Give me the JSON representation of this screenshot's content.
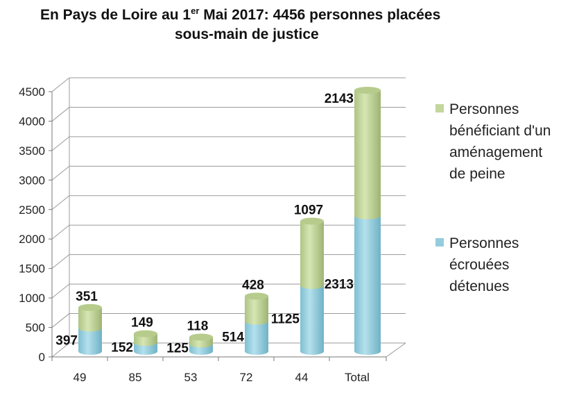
{
  "chart_data": {
    "type": "bar",
    "stacked": true,
    "style": "3d-cylinder",
    "title_part1": "En Pays de Loire au 1",
    "title_sup": "er",
    "title_part2": " Mai 2017: 4456 personnes placées",
    "title_line2": "sous-main de justice",
    "categories": [
      "49",
      "85",
      "53",
      "72",
      "44",
      "Total"
    ],
    "series": [
      {
        "name": "Personnes écrouées détenues",
        "name_lines": [
          "Personnes",
          "écrouées",
          "détenues"
        ],
        "color": "#93cddd",
        "values": [
          397,
          152,
          125,
          514,
          1125,
          2313
        ]
      },
      {
        "name": "Personnes bénéficiant d'un aménagement de peine",
        "name_lines": [
          "Personnes",
          "bénéficiant d'un",
          "aménagement",
          "de peine"
        ],
        "color": "#c3d69b",
        "values": [
          351,
          149,
          118,
          428,
          1097,
          2143
        ]
      }
    ],
    "ylim": [
      0,
      4500
    ],
    "yticks": [
      "0",
      "500",
      "1000",
      "1500",
      "2000",
      "2500",
      "3000",
      "3500",
      "4000",
      "4500"
    ],
    "grid": true,
    "legend": "right"
  }
}
